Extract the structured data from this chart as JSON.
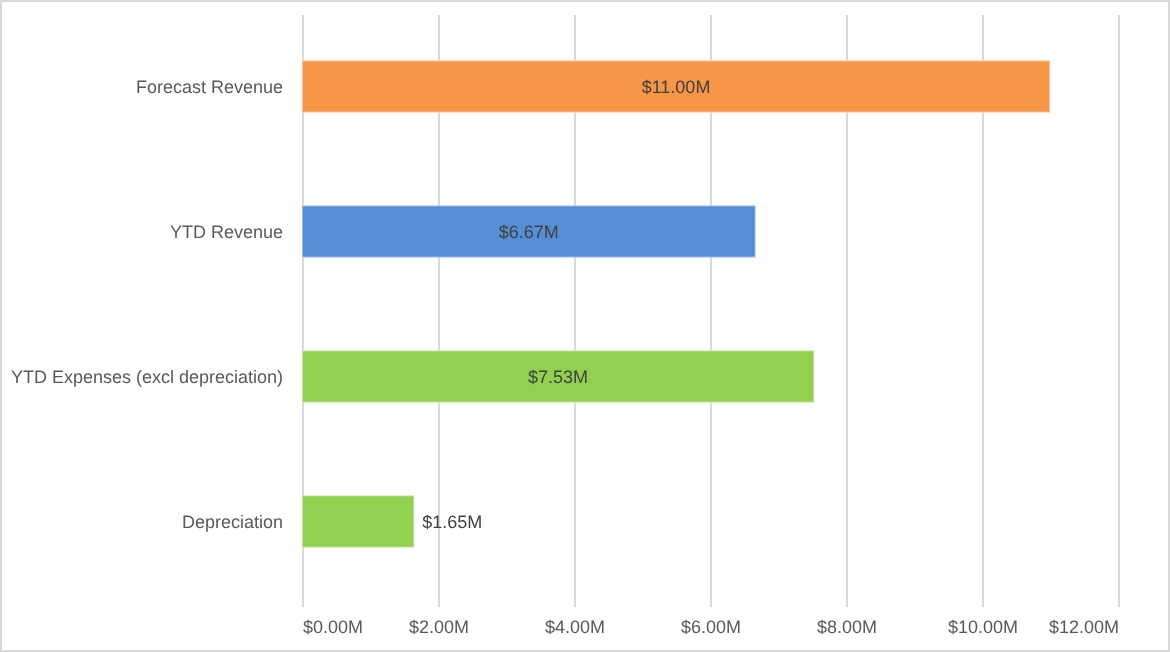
{
  "chart_data": {
    "type": "bar",
    "orientation": "horizontal",
    "categories": [
      "Forecast Revenue",
      "YTD Revenue",
      "YTD Expenses (excl depreciation)",
      "Depreciation"
    ],
    "values": [
      11.0,
      6.67,
      7.53,
      1.65
    ],
    "colors": [
      "#f79646",
      "#558ed5",
      "#92d050",
      "#92d050"
    ],
    "value_labels": [
      "$11.00M",
      "$6.67M",
      "$7.53M",
      "$1.65M"
    ],
    "xlim": [
      0,
      12
    ],
    "xticks": [
      {
        "value": 0,
        "label": "$0.00M"
      },
      {
        "value": 2,
        "label": "$2.00M"
      },
      {
        "value": 4,
        "label": "$4.00M"
      },
      {
        "value": 6,
        "label": "$6.00M"
      },
      {
        "value": 8,
        "label": "$8.00M"
      },
      {
        "value": 10,
        "label": "$10.00M"
      },
      {
        "value": 12,
        "label": "$12.00M"
      }
    ],
    "grid": "x"
  }
}
